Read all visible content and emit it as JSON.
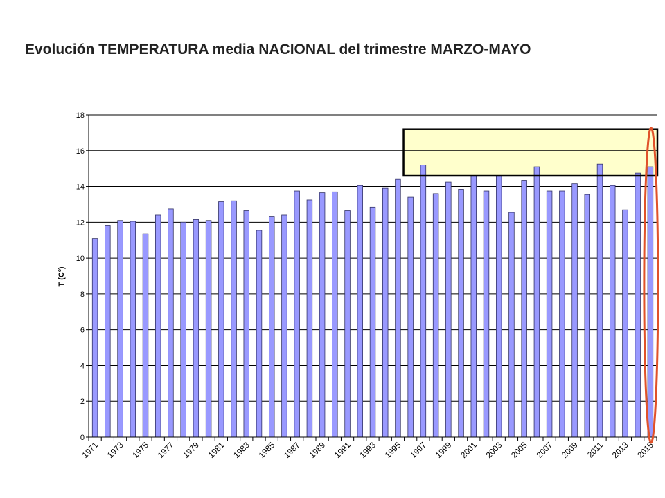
{
  "chart_data": {
    "type": "bar",
    "title": "Evolución TEMPERATURA media NACIONAL del trimestre MARZO-MAYO",
    "xlabel": "",
    "ylabel": "T (Cº)",
    "ylim": [
      0,
      18
    ],
    "yticks": [
      0,
      2,
      4,
      6,
      8,
      10,
      12,
      14,
      16,
      18
    ],
    "grid": true,
    "legend": "none",
    "categories": [
      "1971",
      "1972",
      "1973",
      "1974",
      "1975",
      "1976",
      "1977",
      "1978",
      "1979",
      "1980",
      "1981",
      "1982",
      "1983",
      "1984",
      "1985",
      "1986",
      "1987",
      "1988",
      "1989",
      "1990",
      "1991",
      "1992",
      "1993",
      "1994",
      "1995",
      "1996",
      "1997",
      "1998",
      "1999",
      "2000",
      "2001",
      "2002",
      "2003",
      "2004",
      "2005",
      "2006",
      "2007",
      "2008",
      "2009",
      "2010",
      "2011",
      "2012",
      "2013",
      "2014",
      "2015"
    ],
    "xtick_labels": [
      "1971",
      "1973",
      "1975",
      "1977",
      "1979",
      "1981",
      "1983",
      "1985",
      "1987",
      "1989",
      "1991",
      "1993",
      "1995",
      "1997",
      "1999",
      "2001",
      "2003",
      "2005",
      "2007",
      "2009",
      "2011",
      "2013",
      "2015"
    ],
    "values": [
      11.1,
      11.8,
      12.1,
      12.05,
      11.35,
      12.4,
      12.75,
      12.0,
      12.15,
      12.1,
      13.15,
      13.2,
      12.65,
      11.55,
      12.3,
      12.4,
      13.75,
      13.25,
      13.65,
      13.7,
      12.65,
      14.05,
      12.85,
      13.9,
      14.4,
      13.4,
      15.2,
      13.6,
      14.25,
      13.85,
      14.6,
      13.75,
      14.6,
      12.55,
      14.35,
      15.1,
      13.75,
      13.75,
      14.15,
      13.55,
      15.25,
      14.05,
      12.7,
      14.75,
      15.1
    ],
    "colors": {
      "bar_fill": "#9999ff",
      "bar_stroke": "#333366",
      "highlight_box_fill": "#ffffcc",
      "highlight_box_stroke": "#000000",
      "ellipse_stroke": "#e0522a"
    },
    "annotations": {
      "highlight_box": {
        "x_from": "1996",
        "x_to": "2015",
        "y_from": 14.6,
        "y_to": 17.2
      },
      "ellipse_category": "2015"
    }
  }
}
